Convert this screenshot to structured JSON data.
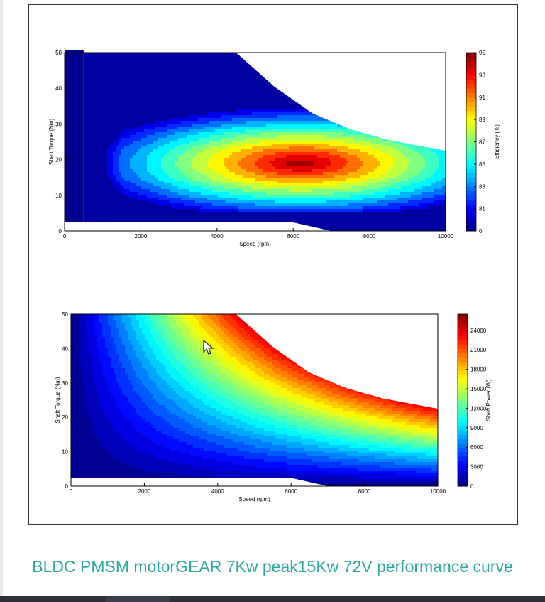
{
  "caption": "BLDC PMSM motorGEAR 7Kw peak15Kw 72V performance curve",
  "chart_data": [
    {
      "type": "contour",
      "title": "",
      "xlabel": "Speed (rpm)",
      "ylabel": "Shaft Torque (Nm)",
      "xlim": [
        0,
        10000
      ],
      "ylim": [
        0,
        50
      ],
      "xticks": [
        "0",
        "2000",
        "4000",
        "6000",
        "8000",
        "10000"
      ],
      "yticks": [
        "0",
        "10",
        "20",
        "30",
        "40",
        "50"
      ],
      "colorbar": {
        "label": "Efficiency (%)",
        "ticks": [
          "0",
          "81",
          "83",
          "85",
          "87",
          "89",
          "91",
          "93",
          "95"
        ]
      },
      "torque_limit_curve": {
        "speed": [
          500,
          4500,
          5500,
          6500,
          7500,
          8500,
          10000
        ],
        "torque": [
          50,
          50,
          40.5,
          33,
          28.5,
          25.5,
          22.5
        ]
      },
      "peak_efficiency_region": {
        "speed_range": [
          5000,
          7700
        ],
        "torque_range": [
          13,
          25
        ],
        "efficiency": 95
      },
      "levels": [
        81,
        82,
        83,
        84,
        85,
        86,
        87,
        88,
        89,
        90,
        91,
        92,
        93,
        94,
        95
      ]
    },
    {
      "type": "contour",
      "title": "",
      "xlabel": "Speed (rpm)",
      "ylabel": "Shaft Torque (Nm)",
      "xlim": [
        0,
        10000
      ],
      "ylim": [
        0,
        50
      ],
      "xticks": [
        "0",
        "2000",
        "4000",
        "6000",
        "8000",
        "10000"
      ],
      "yticks": [
        "0",
        "10",
        "20",
        "30",
        "40",
        "50"
      ],
      "colorbar": {
        "label": "Shaft Power (W)",
        "ticks": [
          "0",
          "3000",
          "6000",
          "9000",
          "12000",
          "15000",
          "18000",
          "21000",
          "24000"
        ],
        "range": [
          0,
          26500
        ]
      },
      "torque_limit_curve": {
        "speed": [
          0,
          4500,
          5500,
          6500,
          7500,
          8500,
          10000
        ],
        "torque": [
          50,
          50,
          40.5,
          33,
          28.5,
          25.5,
          22.5
        ]
      },
      "max_power_w": 24000
    }
  ]
}
